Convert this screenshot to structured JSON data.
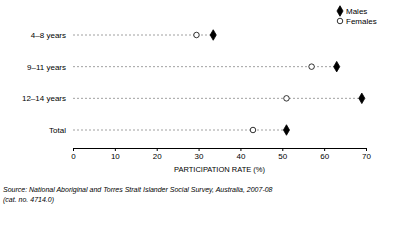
{
  "chart_data": {
    "type": "dot",
    "orientation": "horizontal",
    "categories": [
      "4–8 years",
      "9–11 years",
      "12–14 years",
      "Total"
    ],
    "series": [
      {
        "name": "Males",
        "color": "#000000",
        "marker": "diamond",
        "values": [
          33.5,
          63,
          69,
          51
        ]
      },
      {
        "name": "Females",
        "color": "#000000",
        "marker": "open-circle",
        "values": [
          29.5,
          57,
          51,
          43
        ]
      }
    ],
    "x_label": "PARTICIPATION RATE (%)",
    "xlim": [
      0,
      70
    ],
    "xticks": [
      0,
      10,
      20,
      30,
      40,
      50,
      60,
      70
    ],
    "grid": false,
    "legend": "top-right",
    "line_style": "dashed",
    "source": [
      "Source: National Aboriginal and Torres Strait Islander Social Survey, Australia, 2007-08",
      "(cat. no. 4714.0)"
    ]
  }
}
